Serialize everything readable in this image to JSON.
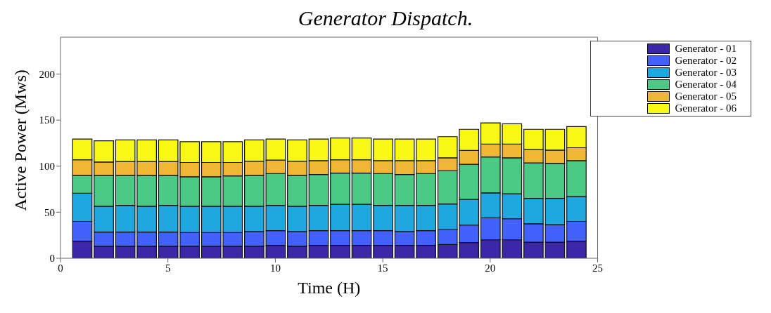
{
  "chart_data": {
    "type": "bar",
    "title": "Generator Dispatch.",
    "xlabel": "Time (H)",
    "ylabel": "Active Power (Mws)",
    "stacked": true,
    "x": [
      1,
      2,
      3,
      4,
      5,
      6,
      7,
      8,
      9,
      10,
      11,
      12,
      13,
      14,
      15,
      16,
      17,
      18,
      19,
      20,
      21,
      22,
      23,
      24
    ],
    "series": [
      {
        "name": "Generator - 01",
        "color": "#3b27a8",
        "values": [
          18.5,
          13,
          13,
          13,
          13,
          13,
          13,
          13,
          13,
          14,
          13,
          14,
          14,
          14,
          14,
          14,
          14,
          15,
          17,
          20,
          20,
          17.5,
          17.5,
          18.5
        ]
      },
      {
        "name": "Generator - 02",
        "color": "#4262fb",
        "values": [
          21.5,
          15.5,
          15.5,
          15.5,
          15.5,
          15,
          15,
          15,
          16,
          16,
          16,
          16,
          16,
          16,
          16,
          15,
          16,
          16,
          19,
          24,
          23,
          20,
          19,
          21.5
        ]
      },
      {
        "name": "Generator - 03",
        "color": "#1ea8df",
        "values": [
          30.5,
          28,
          29,
          28,
          29,
          28.5,
          28.5,
          28.5,
          27.5,
          27.5,
          27.5,
          27.5,
          28.5,
          28.5,
          27.5,
          28.5,
          27.5,
          28,
          28,
          27,
          27,
          27.5,
          28.5,
          27
        ]
      },
      {
        "name": "Generator - 04",
        "color": "#4aca84",
        "values": [
          19.5,
          33.5,
          32.5,
          33.5,
          32.5,
          32,
          32,
          33,
          33.5,
          34.5,
          33.5,
          33.5,
          34,
          34,
          34.5,
          33.5,
          34.5,
          36,
          38,
          39,
          39,
          38.5,
          38,
          39
        ]
      },
      {
        "name": "Generator - 05",
        "color": "#efb734",
        "values": [
          17,
          14.5,
          15,
          15,
          15,
          15.5,
          15.5,
          14.5,
          15.5,
          14.5,
          15.5,
          15,
          14.5,
          14.5,
          14,
          15,
          14,
          14,
          15,
          14,
          15,
          14.5,
          14.5,
          14
        ]
      },
      {
        "name": "Generator - 06",
        "color": "#f7f915",
        "values": [
          22.5,
          23,
          23.5,
          23.5,
          23.5,
          22.5,
          22.5,
          22.5,
          23,
          23,
          23,
          23.5,
          23.5,
          23.5,
          23.5,
          23.5,
          23.5,
          23,
          23,
          23,
          22,
          22,
          22.5,
          23
        ]
      }
    ],
    "xlim": [
      0,
      25
    ],
    "xticks": [
      0,
      5,
      10,
      15,
      20,
      25
    ],
    "ylim": [
      0,
      240
    ],
    "yticks": [
      0,
      50,
      100,
      150,
      200
    ],
    "legend": "top right"
  }
}
